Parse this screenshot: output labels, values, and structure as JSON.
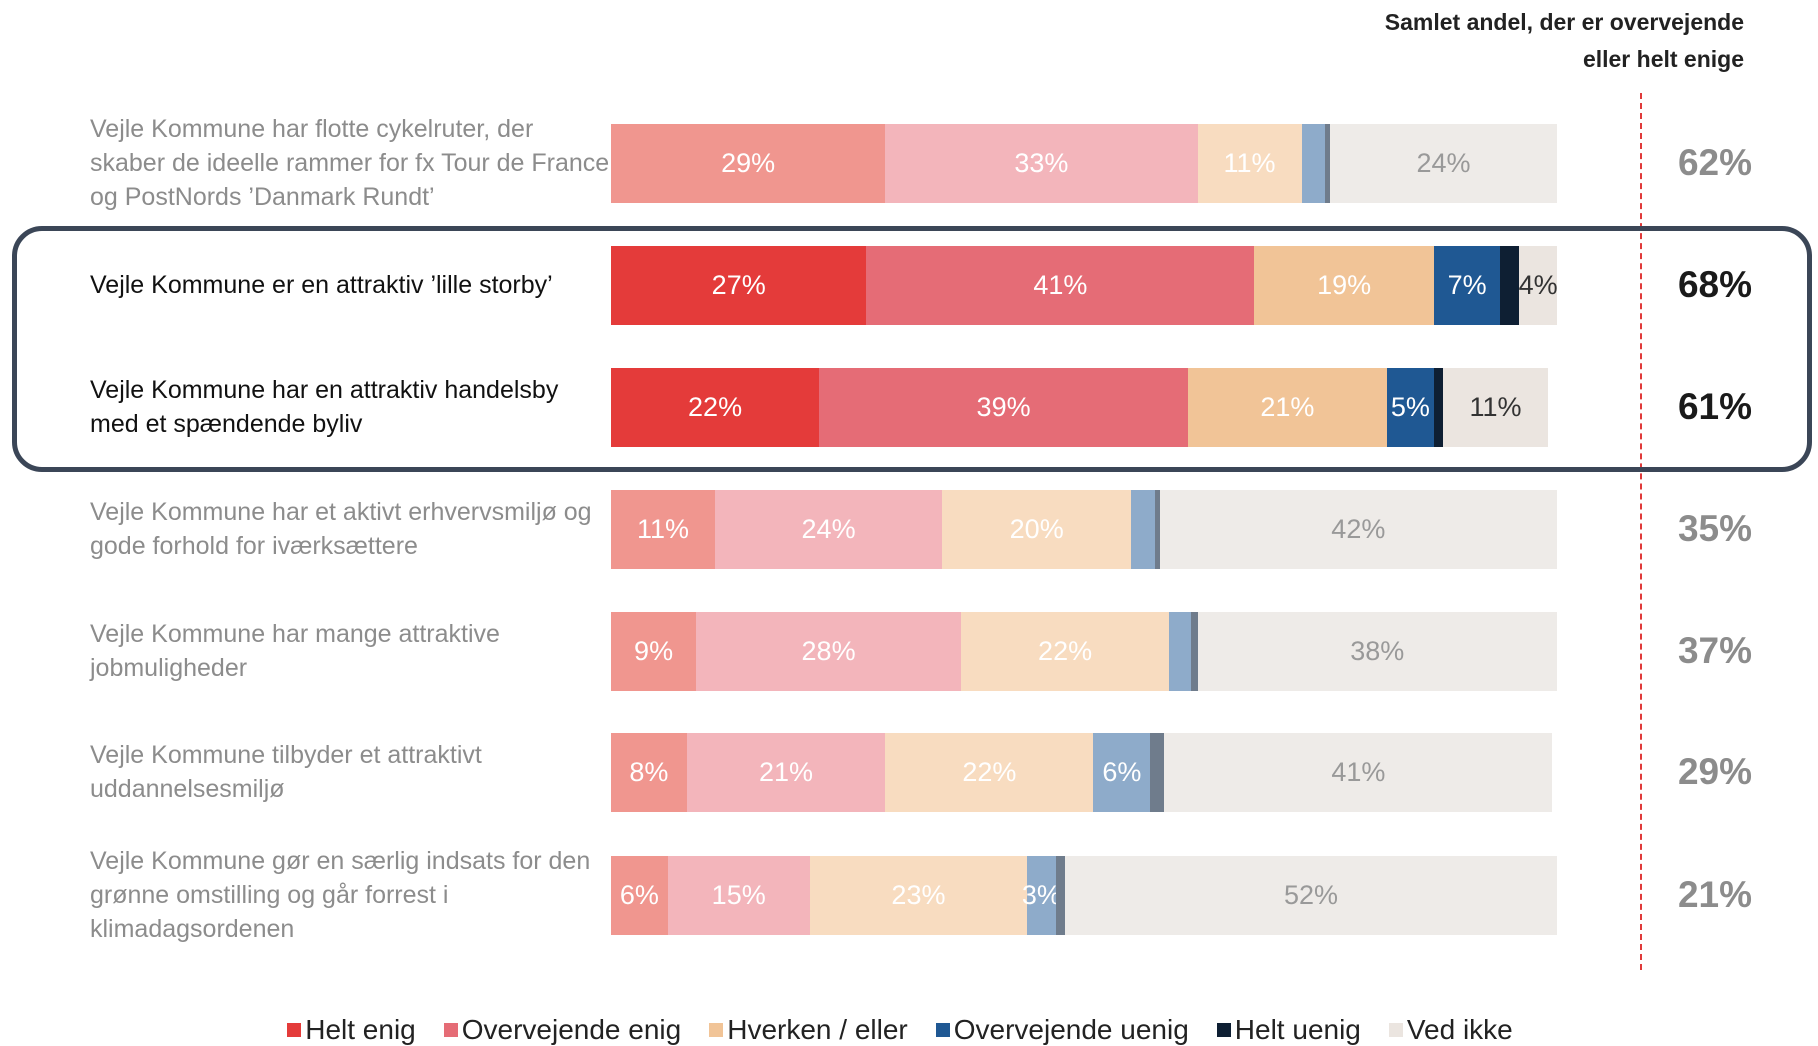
{
  "chart_data": {
    "type": "stacked-bar-horizontal",
    "totals_title": "Samlet andel, der er overvejende eller helt enige",
    "categories": [
      "Vejle Kommune har flotte cykelruter, der skaber de ideelle rammer for fx Tour de France og PostNords ’Danmark Rundt’",
      "Vejle Kommune er en attraktiv ’lille storby’",
      "Vejle Kommune har en attraktiv handelsby med et spændende byliv",
      "Vejle Kommune har et aktivt erhvervsmiljø og gode forhold for iværksættere",
      "Vejle Kommune har mange attraktive jobmuligheder",
      "Vejle Kommune tilbyder et attraktivt uddannelsesmiljø",
      "Vejle Kommune gør en særlig indsats for den grønne omstilling og går forrest i klimadagsordenen"
    ],
    "xlim": [
      0,
      100
    ],
    "highlight": [
      1,
      2
    ],
    "series": [
      {
        "name": "Helt enig",
        "color": "#e43b3a",
        "faded_color": "#f0968f",
        "values": [
          29,
          27,
          22,
          11,
          9,
          8,
          6
        ],
        "value_labels": [
          "29%",
          "27%",
          "22%",
          "11%",
          "9%",
          "8%",
          "6%"
        ]
      },
      {
        "name": "Overvejende enig",
        "color": "#e56c76",
        "faded_color": "#f3b5bb",
        "values": [
          33,
          41,
          39,
          24,
          28,
          21,
          15
        ],
        "value_labels": [
          "33%",
          "41%",
          "39%",
          "24%",
          "28%",
          "21%",
          "15%"
        ]
      },
      {
        "name": "Hverken / eller",
        "color": "#f1c497",
        "faded_color": "#f8dcc0",
        "values": [
          11,
          19,
          21,
          20,
          22,
          22,
          23
        ],
        "value_labels": [
          "11%",
          "19%",
          "21%",
          "20%",
          "22%",
          "22%",
          "23%"
        ]
      },
      {
        "name": "Overvejende uenig",
        "color": "#1f5893",
        "faded_color": "#8eabca",
        "values": [
          2.5,
          7,
          5,
          2.5,
          2.3,
          6,
          3
        ],
        "value_labels": [
          null,
          "7%",
          "5%",
          null,
          null,
          "6%",
          "3%"
        ]
      },
      {
        "name": "Helt uenig",
        "color": "#0e1f33",
        "faded_color": "#6f7c8c",
        "values": [
          0.5,
          2,
          1,
          0.5,
          0.7,
          1.5,
          1
        ],
        "value_labels": [
          null,
          null,
          null,
          null,
          null,
          null,
          null
        ]
      },
      {
        "name": "Ved ikke",
        "color": "#ebe5e0",
        "faded_color": "#eeebe8",
        "values": [
          24,
          4,
          11,
          42,
          38,
          41,
          52
        ],
        "value_labels": [
          "24%",
          "4%",
          "11%",
          "42%",
          "38%",
          "41%",
          "52%"
        ]
      }
    ],
    "totals": {
      "values": [
        62,
        68,
        61,
        35,
        37,
        29,
        21
      ],
      "value_labels": [
        "62%",
        "68%",
        "61%",
        "35%",
        "37%",
        "29%",
        "21%"
      ]
    }
  }
}
